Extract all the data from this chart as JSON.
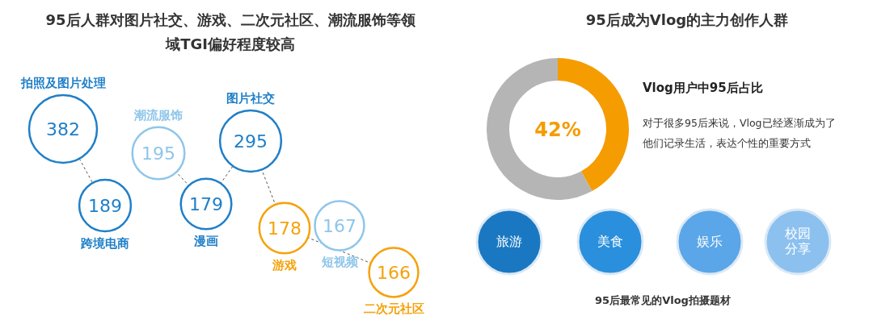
{
  "chart_data": [
    {
      "type": "other",
      "title": "95后人群对图片社交、游戏、二次元社区、潮流服饰等领域TGI偏好程度较高",
      "categories": [
        "拍照及图片处理",
        "跨境电商",
        "潮流服饰",
        "漫画",
        "图片社交",
        "游戏",
        "短视频",
        "二次元社区"
      ],
      "values": [
        382,
        189,
        195,
        179,
        295,
        178,
        167,
        166
      ],
      "colors": [
        "#1f7fc8",
        "#1f7fc8",
        "#8fc6ea",
        "#1f7fc8",
        "#1f7fc8",
        "#f5a20c",
        "#8fc6ea",
        "#f5a20c"
      ],
      "data_labels": true
    },
    {
      "type": "donut",
      "title": "95后成为Vlog的主力创作人群",
      "categories": [
        null,
        null
      ],
      "values": [
        42,
        58
      ],
      "colors": [
        "#f59c00",
        "#b5b5b5"
      ],
      "annotations": [
        "42%",
        "Vlog用户中95后占比",
        "对于很多95后来说，Vlog已经逐渐成为了他们记录生活，表达个性的重要方式"
      ]
    },
    {
      "type": "other",
      "title": "95后最常见的Vlog拍摄题材",
      "categories": [
        "旅游",
        "美食",
        "娱乐",
        "校园分享"
      ],
      "colors": [
        "#1a78c2",
        "#2a8fdc",
        "#5aa6e8",
        "#8cc1ef"
      ]
    }
  ]
}
